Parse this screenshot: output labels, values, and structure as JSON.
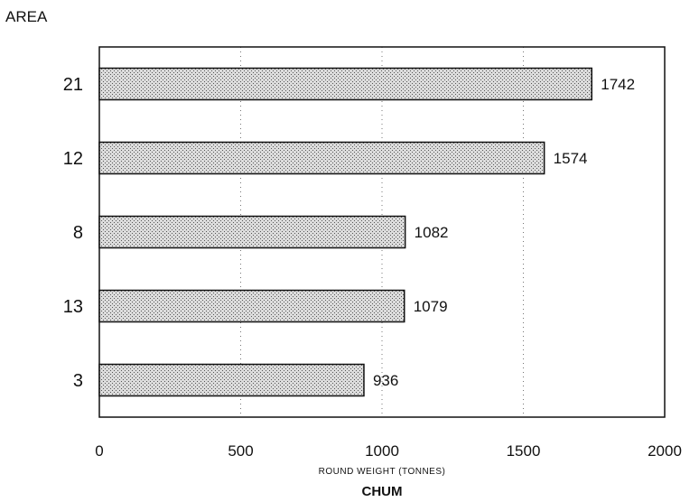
{
  "chart_data": {
    "type": "bar",
    "orientation": "horizontal",
    "ylabel": "AREA",
    "xlabel": "ROUND WEIGHT (TONNES)",
    "title": "CHUM",
    "categories": [
      "21",
      "12",
      "8",
      "13",
      "3"
    ],
    "values": [
      1742,
      1574,
      1082,
      1079,
      936
    ],
    "value_labels": [
      "1742",
      "1574",
      "1082",
      "1079",
      "936"
    ],
    "xlim": [
      0,
      2000
    ],
    "xticks": [
      0,
      500,
      1000,
      1500,
      2000
    ],
    "xtick_labels": [
      "0",
      "500",
      "1000",
      "1500",
      "2000"
    ],
    "grid": "vertical dotted",
    "bar_fill": "stippled",
    "colors": {
      "ink": "#111111",
      "bar_fill": "#d9d9d9",
      "stipple": "#555555",
      "background": "#ffffff"
    }
  }
}
